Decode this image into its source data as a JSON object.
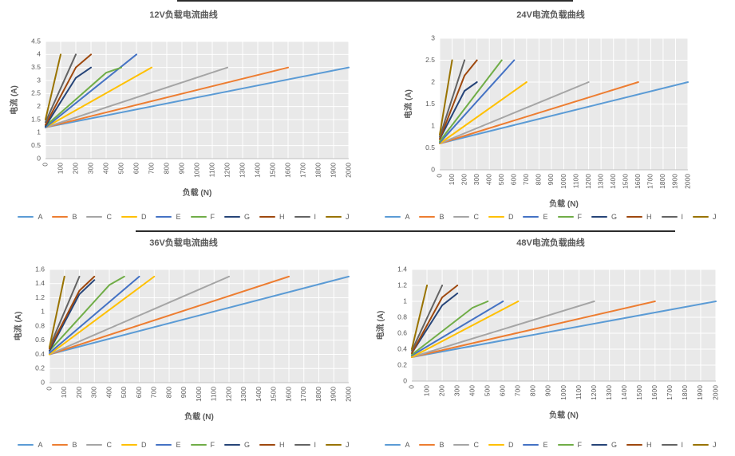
{
  "chart_data": [
    {
      "type": "line",
      "title": "12V负载电流曲线",
      "xlabel": "负载 (N)",
      "ylabel": "电流 (A)",
      "x_axis": {
        "min": 0,
        "max": 2000,
        "step": 100
      },
      "y_axis": {
        "min": 0,
        "max": 4.5,
        "step": 0.5
      },
      "grid": true,
      "legend_position": "bottom",
      "series": [
        {
          "name": "A",
          "color": "#5B9BD5",
          "points": [
            [
              0,
              1.2
            ],
            [
              2000,
              3.5
            ]
          ]
        },
        {
          "name": "B",
          "color": "#ED7D31",
          "points": [
            [
              0,
              1.2
            ],
            [
              1600,
              3.5
            ]
          ]
        },
        {
          "name": "C",
          "color": "#A5A5A5",
          "points": [
            [
              0,
              1.2
            ],
            [
              1200,
              3.5
            ]
          ]
        },
        {
          "name": "D",
          "color": "#FFC000",
          "points": [
            [
              0,
              1.2
            ],
            [
              700,
              3.5
            ]
          ]
        },
        {
          "name": "E",
          "color": "#4472C4",
          "points": [
            [
              0,
              1.2
            ],
            [
              600,
              4.0
            ]
          ]
        },
        {
          "name": "F",
          "color": "#70AD47",
          "points": [
            [
              0,
              1.25
            ],
            [
              400,
              3.3
            ],
            [
              500,
              3.5
            ]
          ]
        },
        {
          "name": "G",
          "color": "#264478",
          "points": [
            [
              0,
              1.25
            ],
            [
              200,
              3.1
            ],
            [
              300,
              3.5
            ]
          ]
        },
        {
          "name": "H",
          "color": "#9E480E",
          "points": [
            [
              0,
              1.3
            ],
            [
              200,
              3.5
            ],
            [
              300,
              4.0
            ]
          ]
        },
        {
          "name": "I",
          "color": "#636363",
          "points": [
            [
              0,
              1.4
            ],
            [
              200,
              4.0
            ]
          ]
        },
        {
          "name": "J",
          "color": "#997300",
          "points": [
            [
              0,
              1.5
            ],
            [
              100,
              4.0
            ]
          ]
        }
      ]
    },
    {
      "type": "line",
      "title": "24V电流负载曲线",
      "xlabel": "负载 (N)",
      "ylabel": "电流 (A)",
      "x_axis": {
        "min": 0,
        "max": 2000,
        "step": 100
      },
      "y_axis": {
        "min": 0,
        "max": 3,
        "step": 0.5
      },
      "grid": true,
      "legend_position": "bottom",
      "series": [
        {
          "name": "A",
          "color": "#5B9BD5",
          "points": [
            [
              0,
              0.6
            ],
            [
              2000,
              2.0
            ]
          ]
        },
        {
          "name": "B",
          "color": "#ED7D31",
          "points": [
            [
              0,
              0.6
            ],
            [
              1600,
              2.0
            ]
          ]
        },
        {
          "name": "C",
          "color": "#A5A5A5",
          "points": [
            [
              0,
              0.6
            ],
            [
              1200,
              2.0
            ]
          ]
        },
        {
          "name": "D",
          "color": "#FFC000",
          "points": [
            [
              0,
              0.6
            ],
            [
              700,
              2.0
            ]
          ]
        },
        {
          "name": "E",
          "color": "#4472C4",
          "points": [
            [
              0,
              0.62
            ],
            [
              600,
              2.5
            ]
          ]
        },
        {
          "name": "F",
          "color": "#70AD47",
          "points": [
            [
              0,
              0.65
            ],
            [
              500,
              2.5
            ]
          ]
        },
        {
          "name": "G",
          "color": "#264478",
          "points": [
            [
              0,
              0.7
            ],
            [
              200,
              1.8
            ],
            [
              300,
              2.0
            ]
          ]
        },
        {
          "name": "H",
          "color": "#9E480E",
          "points": [
            [
              0,
              0.7
            ],
            [
              200,
              2.15
            ],
            [
              300,
              2.5
            ]
          ]
        },
        {
          "name": "I",
          "color": "#636363",
          "points": [
            [
              0,
              0.75
            ],
            [
              200,
              2.5
            ]
          ]
        },
        {
          "name": "J",
          "color": "#997300",
          "points": [
            [
              0,
              0.8
            ],
            [
              100,
              2.5
            ]
          ]
        }
      ]
    },
    {
      "type": "line",
      "title": "36V负载电流曲线",
      "xlabel": "负载 (N)",
      "ylabel": "电流 (A)",
      "x_axis": {
        "min": 0,
        "max": 2000,
        "step": 100
      },
      "y_axis": {
        "min": 0,
        "max": 1.6,
        "step": 0.2
      },
      "grid": true,
      "legend_position": "bottom",
      "series": [
        {
          "name": "A",
          "color": "#5B9BD5",
          "points": [
            [
              0,
              0.4
            ],
            [
              2000,
              1.5
            ]
          ]
        },
        {
          "name": "B",
          "color": "#ED7D31",
          "points": [
            [
              0,
              0.4
            ],
            [
              1600,
              1.5
            ]
          ]
        },
        {
          "name": "C",
          "color": "#A5A5A5",
          "points": [
            [
              0,
              0.4
            ],
            [
              1200,
              1.5
            ]
          ]
        },
        {
          "name": "D",
          "color": "#FFC000",
          "points": [
            [
              0,
              0.4
            ],
            [
              700,
              1.5
            ]
          ]
        },
        {
          "name": "E",
          "color": "#4472C4",
          "points": [
            [
              0,
              0.42
            ],
            [
              600,
              1.5
            ]
          ]
        },
        {
          "name": "F",
          "color": "#70AD47",
          "points": [
            [
              0,
              0.45
            ],
            [
              400,
              1.38
            ],
            [
              500,
              1.5
            ]
          ]
        },
        {
          "name": "G",
          "color": "#264478",
          "points": [
            [
              0,
              0.45
            ],
            [
              200,
              1.25
            ],
            [
              300,
              1.45
            ]
          ]
        },
        {
          "name": "H",
          "color": "#9E480E",
          "points": [
            [
              0,
              0.48
            ],
            [
              200,
              1.3
            ],
            [
              300,
              1.5
            ]
          ]
        },
        {
          "name": "I",
          "color": "#636363",
          "points": [
            [
              0,
              0.5
            ],
            [
              200,
              1.5
            ]
          ]
        },
        {
          "name": "J",
          "color": "#997300",
          "points": [
            [
              0,
              0.5
            ],
            [
              100,
              1.5
            ]
          ]
        }
      ]
    },
    {
      "type": "line",
      "title": "48V电流负载曲线",
      "xlabel": "负载 (N)",
      "ylabel": "电流 (A)",
      "x_axis": {
        "min": 0,
        "max": 2000,
        "step": 100
      },
      "y_axis": {
        "min": 0,
        "max": 1.4,
        "step": 0.2
      },
      "grid": true,
      "legend_position": "bottom",
      "series": [
        {
          "name": "A",
          "color": "#5B9BD5",
          "points": [
            [
              0,
              0.3
            ],
            [
              2000,
              1.0
            ]
          ]
        },
        {
          "name": "B",
          "color": "#ED7D31",
          "points": [
            [
              0,
              0.3
            ],
            [
              1600,
              1.0
            ]
          ]
        },
        {
          "name": "C",
          "color": "#A5A5A5",
          "points": [
            [
              0,
              0.3
            ],
            [
              1200,
              1.0
            ]
          ]
        },
        {
          "name": "D",
          "color": "#FFC000",
          "points": [
            [
              0,
              0.3
            ],
            [
              700,
              1.0
            ]
          ]
        },
        {
          "name": "E",
          "color": "#4472C4",
          "points": [
            [
              0,
              0.32
            ],
            [
              600,
              1.0
            ]
          ]
        },
        {
          "name": "F",
          "color": "#70AD47",
          "points": [
            [
              0,
              0.33
            ],
            [
              400,
              0.92
            ],
            [
              500,
              1.0
            ]
          ]
        },
        {
          "name": "G",
          "color": "#264478",
          "points": [
            [
              0,
              0.35
            ],
            [
              200,
              0.95
            ],
            [
              300,
              1.1
            ]
          ]
        },
        {
          "name": "H",
          "color": "#9E480E",
          "points": [
            [
              0,
              0.35
            ],
            [
              200,
              1.05
            ],
            [
              300,
              1.2
            ]
          ]
        },
        {
          "name": "I",
          "color": "#636363",
          "points": [
            [
              0,
              0.38
            ],
            [
              200,
              1.2
            ]
          ]
        },
        {
          "name": "J",
          "color": "#997300",
          "points": [
            [
              0,
              0.4
            ],
            [
              100,
              1.2
            ]
          ]
        }
      ]
    }
  ],
  "style": {
    "plot_background": "#E9E9E9",
    "gridline_color": "#FFFFFF",
    "axis_line_color": "#BFBFBF",
    "text_color": "#595959"
  }
}
